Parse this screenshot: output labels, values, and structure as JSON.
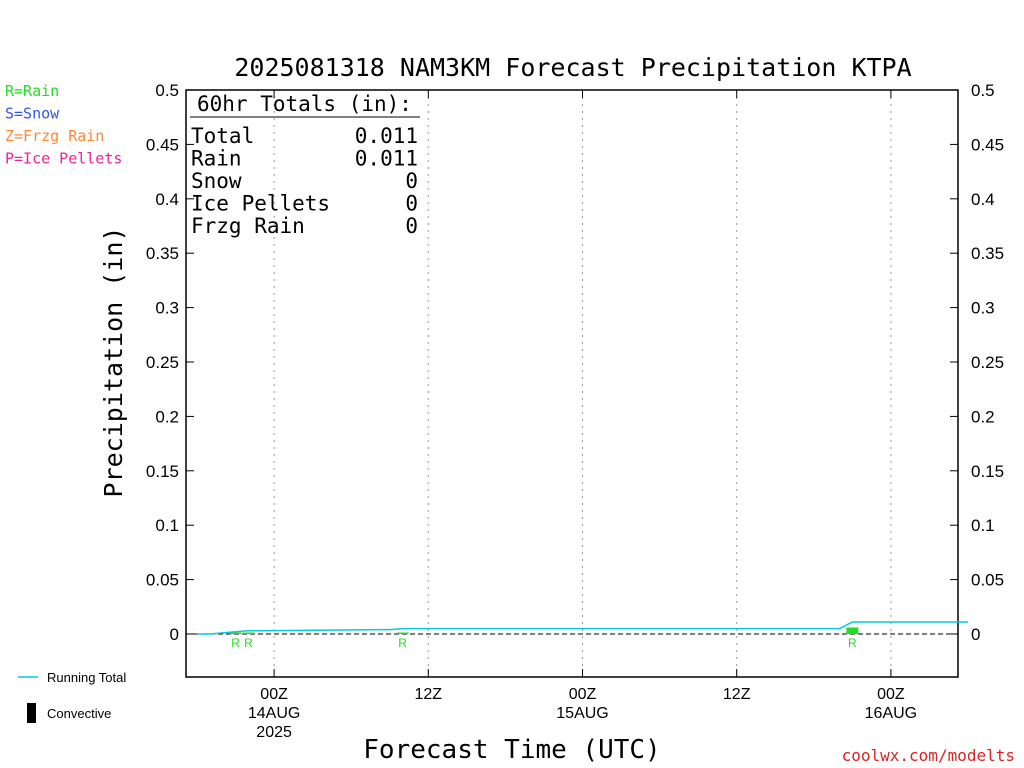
{
  "title": "2025081318 NAM3KM Forecast Precipitation KTPA",
  "credit": "coolwx.com/modelts",
  "type_legend": [
    {
      "label": "R=Rain",
      "color": "#22dd22"
    },
    {
      "label": "S=Snow",
      "color": "#3355ee"
    },
    {
      "label": "Z=Frzg Rain",
      "color": "#ff8833"
    },
    {
      "label": "P=Ice Pellets",
      "color": "#ee2299"
    }
  ],
  "bottom_legend": {
    "running_total": "Running Total",
    "convective": "Convective",
    "running_total_color": "#00ccdd",
    "convective_color": "#000000"
  },
  "totals": {
    "header": "60hr Totals (in):",
    "rows": [
      {
        "name": "Total",
        "value": "0.011"
      },
      {
        "name": "Rain",
        "value": "0.011"
      },
      {
        "name": "Snow",
        "value": "0"
      },
      {
        "name": "Ice Pellets",
        "value": "0"
      },
      {
        "name": "Frzg Rain",
        "value": "0"
      }
    ]
  },
  "chart_data": {
    "type": "bar",
    "title": "2025081318 NAM3KM Forecast Precipitation KTPA",
    "xlabel": "Forecast Time (UTC)",
    "ylabel": "Precipitation (in)",
    "ylim": [
      -0.04,
      0.5
    ],
    "yticks": [
      "0.5",
      "0.45",
      "0.4",
      "0.35",
      "0.3",
      "0.25",
      "0.2",
      "0.15",
      "0.1",
      "0.05",
      "0"
    ],
    "ytick_values": [
      0.5,
      0.45,
      0.4,
      0.35,
      0.3,
      0.25,
      0.2,
      0.15,
      0.1,
      0.05,
      0
    ],
    "x_unit": "forecast hour",
    "xlim": [
      -0.5,
      60
    ],
    "grid": "vertical dotted",
    "xticks": [
      {
        "hour": 6,
        "lines": [
          "00Z",
          "14AUG",
          "2025"
        ]
      },
      {
        "hour": 18,
        "lines": [
          "12Z"
        ]
      },
      {
        "hour": 30,
        "lines": [
          "00Z",
          "15AUG"
        ]
      },
      {
        "hour": 42,
        "lines": [
          "12Z"
        ]
      },
      {
        "hour": 54,
        "lines": [
          "00Z",
          "16AUG"
        ]
      }
    ],
    "precip_bars": [
      {
        "hour": 3,
        "value": 0.001,
        "ptype": "R"
      },
      {
        "hour": 4,
        "value": 0.001,
        "ptype": "R"
      },
      {
        "hour": 16,
        "value": 0.001,
        "ptype": "R"
      },
      {
        "hour": 51,
        "value": 0.006,
        "ptype": "R"
      }
    ],
    "running_total": {
      "name": "Running Total",
      "hours": [
        0,
        1,
        2,
        3,
        4,
        5,
        15,
        16,
        50,
        51,
        60
      ],
      "values": [
        0.0,
        0.0,
        0.001,
        0.002,
        0.003,
        0.003,
        0.004,
        0.005,
        0.005,
        0.011,
        0.011
      ]
    },
    "convective_values": []
  }
}
